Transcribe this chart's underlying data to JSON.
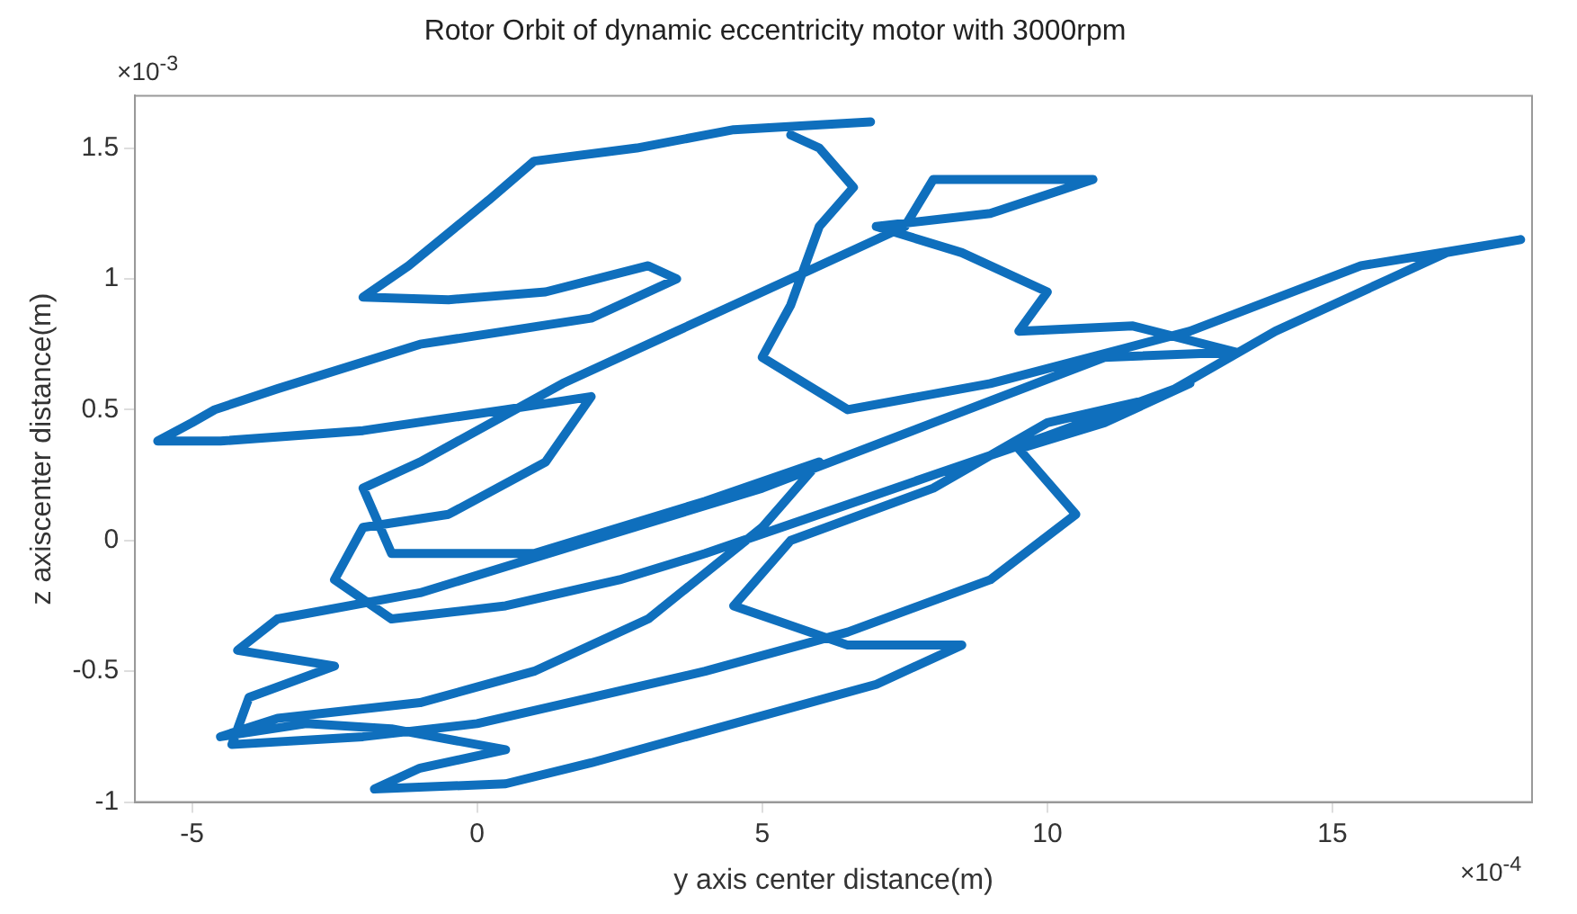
{
  "chart_data": {
    "type": "line",
    "title": "Rotor Orbit of dynamic eccentricity motor with 3000rpm",
    "xlabel": "y axis center distance(m)",
    "ylabel": "z axiscenter distance(m)",
    "annotations": [
      "×10$^{-3}$",
      "×10$^{-4}$"
    ],
    "xlim": [
      -6,
      18.5
    ],
    "ylim": [
      -1,
      1.7
    ],
    "xticks": [
      -5,
      0,
      5,
      10,
      15
    ],
    "yticks": [
      -1,
      -0.5,
      0,
      0.5,
      1,
      1.5
    ],
    "grid": false,
    "legend": false,
    "marker": "none",
    "line_style": "solid",
    "series": [
      {
        "color": "#0f6fbd",
        "x": [
          6.9,
          4.5,
          2.8,
          1.0,
          0.2,
          -1.2,
          -2.0,
          -0.5,
          1.2,
          3.0,
          3.5,
          2.0,
          -1.0,
          -3.5,
          -4.6,
          -5.0,
          -5.6,
          -4.5,
          -2.0,
          0.5,
          2.0,
          1.2,
          -0.5,
          -2.0,
          -2.5,
          -1.5,
          0.5,
          2.5,
          4.0,
          6.0,
          8.0,
          10.0,
          12.5,
          11.0,
          9.5,
          10.5,
          9.0,
          6.5,
          4.0,
          2.0,
          0.0,
          -2.0,
          -4.3,
          -4.0,
          -2.5,
          -4.2,
          -3.5,
          -1.0,
          2.0,
          5.0,
          8.0,
          11.0,
          13.3,
          11.5,
          9.5,
          10.0,
          8.5,
          7.0,
          9.0,
          10.8,
          8.0,
          7.5,
          5.5,
          3.5,
          1.5,
          -1.0,
          -2.0,
          -1.5,
          1.0,
          4.0,
          6.0,
          5.0,
          3.0,
          1.0,
          -1.0,
          -3.5,
          -4.5,
          -3.0,
          -1.5,
          0.5,
          -1.0,
          -1.8,
          0.5,
          2.0,
          4.5,
          7.0,
          8.5,
          6.5,
          4.5,
          5.5,
          8.0,
          10.0,
          12.0,
          14.0,
          16.0,
          17.0,
          18.3,
          15.5,
          12.5,
          9.0,
          6.5,
          5.0,
          5.5,
          6.0,
          6.6,
          6.0,
          5.5
        ],
        "values": [
          1.6,
          1.57,
          1.5,
          1.45,
          1.3,
          1.05,
          0.93,
          0.92,
          0.95,
          1.05,
          1.0,
          0.85,
          0.75,
          0.58,
          0.5,
          0.45,
          0.38,
          0.38,
          0.42,
          0.5,
          0.55,
          0.3,
          0.1,
          0.05,
          -0.15,
          -0.3,
          -0.25,
          -0.15,
          -0.05,
          0.1,
          0.25,
          0.4,
          0.6,
          0.45,
          0.35,
          0.1,
          -0.15,
          -0.35,
          -0.5,
          -0.6,
          -0.7,
          -0.75,
          -0.78,
          -0.6,
          -0.48,
          -0.42,
          -0.3,
          -0.2,
          0.0,
          0.2,
          0.45,
          0.7,
          0.72,
          0.82,
          0.8,
          0.95,
          1.1,
          1.2,
          1.25,
          1.38,
          1.38,
          1.2,
          1.0,
          0.8,
          0.6,
          0.3,
          0.2,
          -0.05,
          -0.05,
          0.15,
          0.3,
          0.05,
          -0.3,
          -0.5,
          -0.62,
          -0.68,
          -0.75,
          -0.7,
          -0.72,
          -0.8,
          -0.87,
          -0.95,
          -0.93,
          -0.85,
          -0.7,
          -0.55,
          -0.4,
          -0.4,
          -0.25,
          0.0,
          0.2,
          0.45,
          0.55,
          0.8,
          1.0,
          1.1,
          1.15,
          1.05,
          0.8,
          0.6,
          0.5,
          0.7,
          0.9,
          1.2,
          1.35,
          1.5,
          1.55
        ]
      }
    ]
  }
}
